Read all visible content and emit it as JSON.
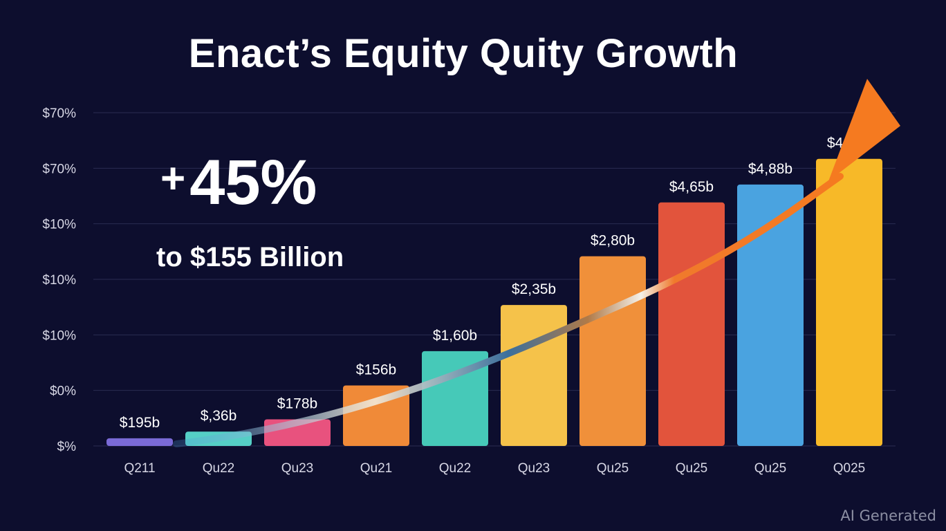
{
  "chart_data": {
    "type": "bar",
    "title": "Enact’s Equity Quity Growth",
    "y_tick_labels": [
      "$70%",
      "$70%",
      "$10%",
      "$10%",
      "$10%",
      "$0%",
      "$%"
    ],
    "categories": [
      "Q211",
      "Qu22",
      "Qu23",
      "Qu21",
      "Qu22",
      "Qu23",
      "Qu25",
      "Qu25",
      "Qu25",
      "Q025"
    ],
    "values": [
      0.15,
      0.28,
      0.52,
      1.18,
      1.85,
      2.75,
      3.7,
      4.75,
      5.1,
      5.6
    ],
    "ylim": [
      0,
      6.5
    ],
    "data_labels": [
      "$195b",
      "$,36b",
      "$178b",
      "$156b",
      "$1,60b",
      "$2,35b",
      "$2,80b",
      "$4,65b",
      "$4,88b",
      "$4,95b"
    ],
    "bar_colors": [
      "#7a6ad6",
      "#55cfc6",
      "#e8527e",
      "#f08a38",
      "#46c9b8",
      "#f5c24a",
      "#f0903a",
      "#e2543c",
      "#4aa3e0",
      "#f7b928"
    ],
    "grid": true,
    "legend": "none",
    "trend_arrow": true,
    "annotation": {
      "plus": "+",
      "big": "45%",
      "sub": "to $155 Billion"
    }
  },
  "watermark": "AI Generated"
}
